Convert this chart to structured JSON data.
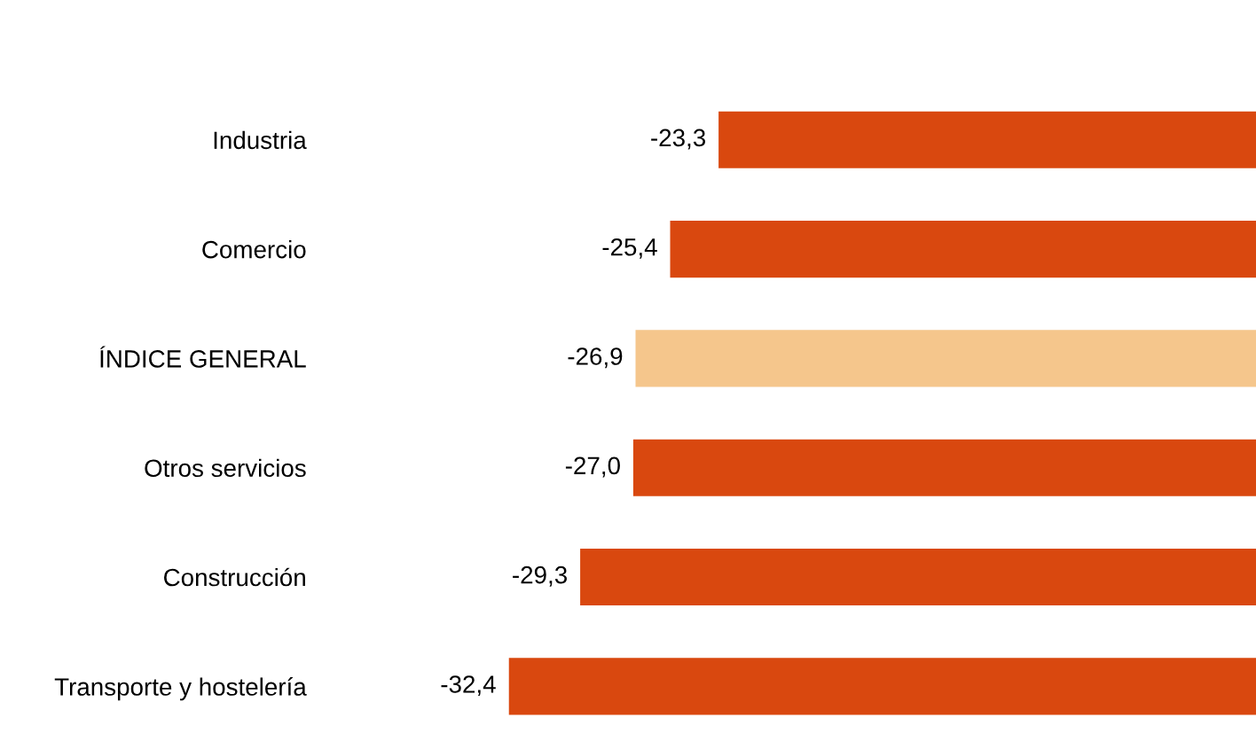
{
  "chart_data": {
    "type": "bar",
    "orientation": "horizontal",
    "categories": [
      "Industria",
      "Comercio",
      "ÍNDICE GENERAL",
      "Otros servicios",
      "Construcción",
      "Transporte y hostelería"
    ],
    "values": [
      -23.3,
      -25.4,
      -26.9,
      -27.0,
      -29.3,
      -32.4
    ],
    "colors": [
      "#d9480f",
      "#d9480f",
      "#f5c68c",
      "#d9480f",
      "#d9480f",
      "#d9480f"
    ],
    "value_labels": [
      "-23,3",
      "-25,4",
      "-26,9",
      "-27,0",
      "-29,3",
      "-32,4"
    ],
    "grid": false,
    "legend": false
  }
}
